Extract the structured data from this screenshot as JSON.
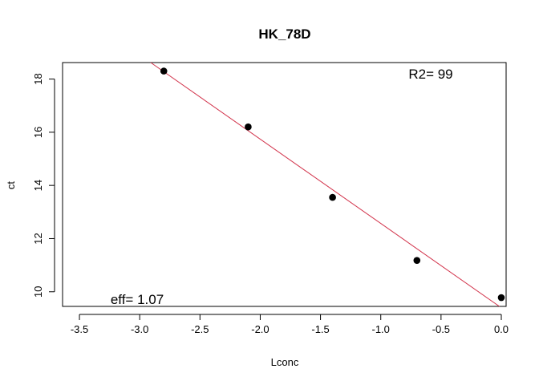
{
  "chart_data": {
    "type": "scatter",
    "title": "HK_78D",
    "xlabel": "Lconc",
    "ylabel": "ct",
    "xlim": [
      -3.64,
      0.04
    ],
    "ylim": [
      9.45,
      18.62
    ],
    "xticks": [
      -3.5,
      -3.0,
      -2.5,
      -2.0,
      -1.5,
      -1.0,
      -0.5,
      0.0
    ],
    "xtick_labels": [
      "-3.5",
      "-3.0",
      "-2.5",
      "-2.0",
      "-1.5",
      "-1.0",
      "-0.5",
      "0.0"
    ],
    "yticks": [
      10,
      12,
      14,
      16,
      18
    ],
    "ytick_labels": [
      "10",
      "12",
      "14",
      "16",
      "18"
    ],
    "grid": false,
    "series": [
      {
        "x": [
          -2.8,
          -2.1,
          -1.4,
          -0.7,
          0.0
        ],
        "y": [
          18.3,
          16.2,
          13.55,
          11.18,
          9.78
        ],
        "color": "#000000"
      }
    ],
    "fit_line": {
      "intercept": 9.4,
      "slope": -3.17,
      "color": "#d2334b"
    },
    "annotations": [
      {
        "id": "r2",
        "text": "R2= 99",
        "position": "top-right"
      },
      {
        "id": "eff",
        "text": "eff= 1.07",
        "position": "bottom-left"
      }
    ]
  }
}
